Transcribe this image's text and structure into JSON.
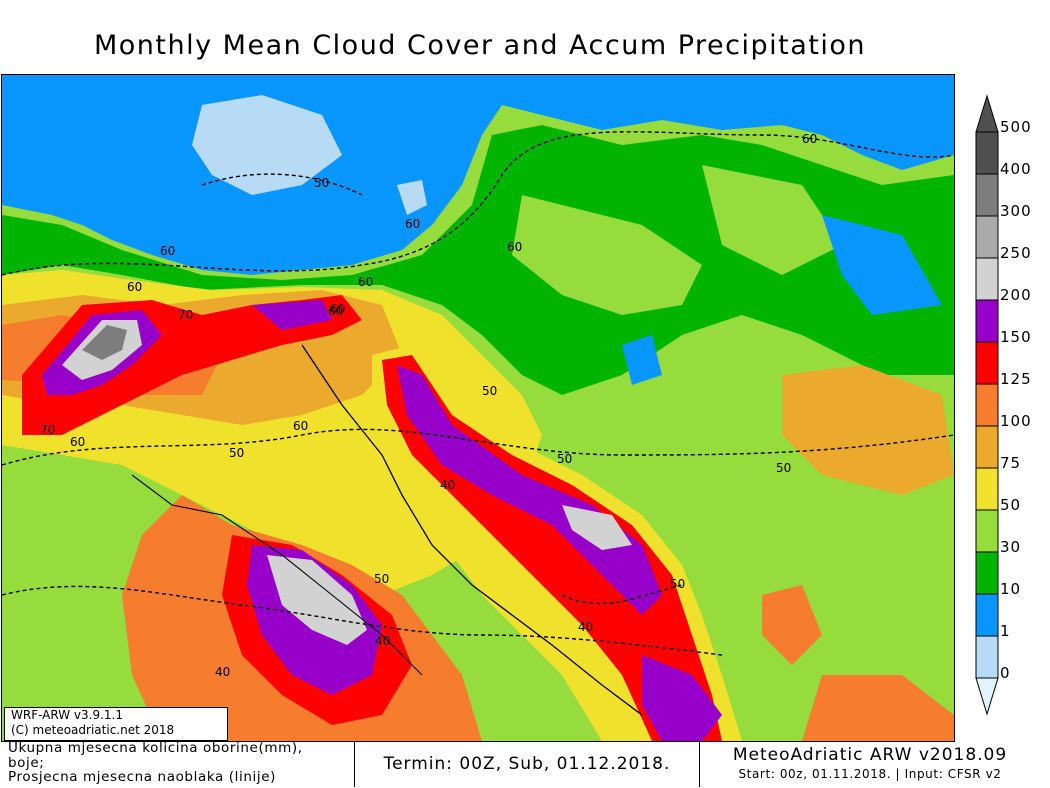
{
  "title": "Monthly Mean Cloud Cover and Accum Precipitation",
  "legend": {
    "levels": [
      "0",
      "1",
      "10",
      "30",
      "50",
      "75",
      "100",
      "125",
      "150",
      "200",
      "250",
      "300",
      "400",
      "500"
    ],
    "colors": [
      "#e1f4ff",
      "#b7daf5",
      "#0a96ff",
      "#00b400",
      "#96dc3c",
      "#f0e12d",
      "#ebaa2d",
      "#f57d2d",
      "#ff0000",
      "#9600c8",
      "#d2d2d2",
      "#aaaaaa",
      "#7d7d7d",
      "#505050"
    ]
  },
  "contour_labels": [
    "50",
    "60",
    "60",
    "60",
    "60",
    "60",
    "60",
    "70",
    "70",
    "60",
    "60",
    "50",
    "60",
    "40",
    "50",
    "50",
    "40",
    "40",
    "50",
    "40",
    "50",
    "60",
    "50"
  ],
  "model_info": {
    "version": "WRF-ARW v3.9.1.1",
    "copyright": "(C) meteoadriatic.net 2018"
  },
  "footer": {
    "description_line1": "Ukupna mjesecna kolicina oborine(mm),",
    "description_line2": "boje;",
    "description_line3": "Prosjecna mjesecna naoblaka (linije)",
    "termin": "Termin: 00Z, Sub, 01.12.2018.",
    "brand": "MeteoAdriatic ARW v2018.09",
    "start": "Start: 00z, 01.11.2018. | Input: CFSR v2"
  }
}
